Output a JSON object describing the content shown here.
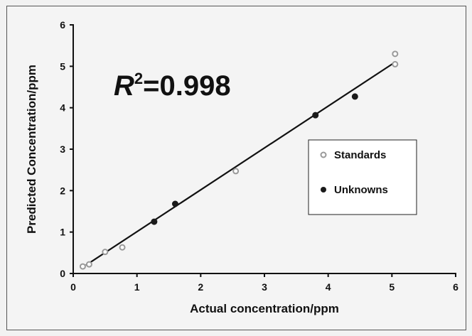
{
  "chart_data": {
    "type": "scatter",
    "title": "",
    "xlabel": "Actual concentration/ppm",
    "ylabel": "Predicted Concentration/ppm",
    "xlim": [
      0,
      6
    ],
    "ylim": [
      0,
      6
    ],
    "xticks": [
      "0",
      "1",
      "2",
      "3",
      "4",
      "5",
      "6"
    ],
    "yticks": [
      "0",
      "1",
      "2",
      "3",
      "4",
      "5",
      "6"
    ],
    "grid": false,
    "legend_position": "right",
    "annotation": {
      "r": "R",
      "sup": "2",
      "value": "=0.998"
    },
    "fit_line": {
      "x": [
        0.2,
        5.05
      ],
      "y": [
        0.2,
        5.1
      ]
    },
    "series": [
      {
        "name": "Standards",
        "marker": "open-circle",
        "color": "#999999",
        "x": [
          0.15,
          0.25,
          0.5,
          0.77,
          2.55,
          5.05,
          5.05
        ],
        "y": [
          0.17,
          0.22,
          0.52,
          0.63,
          2.47,
          5.3,
          5.05
        ]
      },
      {
        "name": "Unknowns",
        "marker": "filled-circle",
        "color": "#1a1a1a",
        "x": [
          1.27,
          1.6,
          3.8,
          4.42
        ],
        "y": [
          1.25,
          1.68,
          3.82,
          4.27
        ]
      }
    ]
  }
}
